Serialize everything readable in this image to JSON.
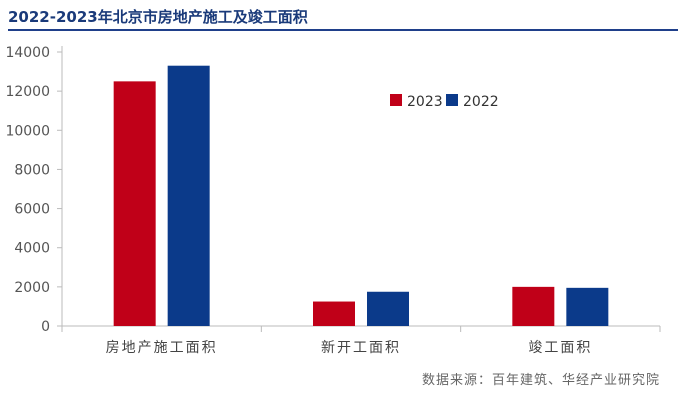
{
  "title": "2022-2023年北京市房地产施工及竣工面积",
  "source": "数据来源：百年建筑、华经产业研究院",
  "colors": {
    "2023": "#c00018",
    "2022": "#0b3a8a",
    "axis": "#bbbbbb",
    "tick_text": "#555555",
    "title": "#1a3a7a"
  },
  "chart_data": {
    "type": "bar",
    "categories": [
      "房地产施工面积",
      "新开工面积",
      "竣工面积"
    ],
    "series": [
      {
        "name": "2023",
        "values": [
          12500,
          1250,
          2000
        ]
      },
      {
        "name": "2022",
        "values": [
          13300,
          1750,
          1950
        ]
      }
    ],
    "ylim": [
      0,
      14000
    ],
    "yticks": [
      "0",
      "2000",
      "4000",
      "6000",
      "8000",
      "10000",
      "12000",
      "14000"
    ],
    "legend": "top-right",
    "grid": false
  }
}
